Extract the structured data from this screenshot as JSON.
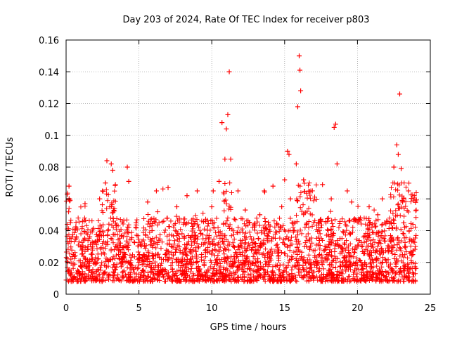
{
  "chart_data": {
    "type": "scatter",
    "title": "Day 203 of 2024, Rate Of TEC Index for receiver p803",
    "xlabel": "GPS time / hours",
    "ylabel": "ROTI / TECUs",
    "xlim": [
      0,
      25
    ],
    "ylim": [
      0,
      0.16
    ],
    "xticks": [
      0,
      5,
      10,
      15,
      20,
      25
    ],
    "yticks": [
      0,
      0.02,
      0.04,
      0.06,
      0.08,
      0.1,
      0.12,
      0.14,
      0.16
    ],
    "xtick_labels": [
      "0",
      "5",
      "10",
      "15",
      "20",
      "25"
    ],
    "ytick_labels": [
      "0",
      "0.02",
      "0.04",
      "0.06",
      "0.08",
      "0.1",
      "0.12",
      "0.14",
      "0.16"
    ],
    "grid": true,
    "marker": "+",
    "marker_color": "#ff0000",
    "series": [
      {
        "name": "ROTI",
        "x": [
          0.1,
          0.2,
          0.3,
          0.5,
          0.8,
          1.0,
          1.3,
          1.5,
          1.8,
          2.0,
          2.3,
          2.5,
          2.7,
          2.8,
          3.0,
          3.1,
          3.2,
          3.4,
          3.6,
          3.9,
          4.2,
          4.3,
          4.5,
          4.8,
          5.0,
          5.3,
          5.6,
          5.9,
          6.2,
          6.5,
          6.8,
          7.0,
          7.3,
          7.6,
          8.0,
          8.3,
          8.6,
          9.0,
          9.3,
          9.6,
          10.0,
          10.1,
          10.3,
          10.5,
          10.7,
          10.9,
          11.0,
          11.1,
          11.2,
          11.3,
          11.5,
          11.8,
          12.0,
          12.3,
          12.6,
          13.0,
          13.3,
          13.6,
          13.9,
          14.2,
          14.5,
          14.8,
          15.0,
          15.2,
          15.3,
          15.4,
          15.6,
          15.8,
          15.9,
          16.0,
          16.05,
          16.1,
          16.3,
          16.5,
          16.8,
          17.0,
          17.3,
          17.6,
          17.9,
          18.2,
          18.4,
          18.5,
          18.6,
          18.8,
          19.0,
          19.3,
          19.6,
          19.9,
          20.2,
          20.5,
          20.8,
          21.1,
          21.4,
          21.7,
          22.0,
          22.3,
          22.5,
          22.7,
          22.8,
          22.9,
          23.0,
          23.1,
          23.3,
          23.5,
          23.7,
          23.9
        ],
        "y": [
          0.02,
          0.068,
          0.045,
          0.025,
          0.015,
          0.018,
          0.057,
          0.03,
          0.022,
          0.02,
          0.06,
          0.065,
          0.07,
          0.084,
          0.055,
          0.082,
          0.078,
          0.03,
          0.025,
          0.02,
          0.08,
          0.071,
          0.018,
          0.045,
          0.02,
          0.015,
          0.058,
          0.04,
          0.065,
          0.018,
          0.025,
          0.067,
          0.02,
          0.055,
          0.015,
          0.062,
          0.02,
          0.065,
          0.025,
          0.035,
          0.055,
          0.065,
          0.02,
          0.071,
          0.108,
          0.085,
          0.104,
          0.113,
          0.14,
          0.085,
          0.03,
          0.065,
          0.02,
          0.053,
          0.045,
          0.02,
          0.05,
          0.065,
          0.02,
          0.068,
          0.018,
          0.055,
          0.072,
          0.09,
          0.088,
          0.06,
          0.04,
          0.082,
          0.118,
          0.15,
          0.141,
          0.128,
          0.072,
          0.03,
          0.065,
          0.045,
          0.02,
          0.069,
          0.025,
          0.06,
          0.105,
          0.107,
          0.082,
          0.035,
          0.02,
          0.065,
          0.058,
          0.02,
          0.048,
          0.02,
          0.055,
          0.02,
          0.05,
          0.06,
          0.02,
          0.045,
          0.08,
          0.094,
          0.088,
          0.126,
          0.079,
          0.058,
          0.03,
          0.065,
          0.02,
          0.062
        ]
      }
    ]
  }
}
